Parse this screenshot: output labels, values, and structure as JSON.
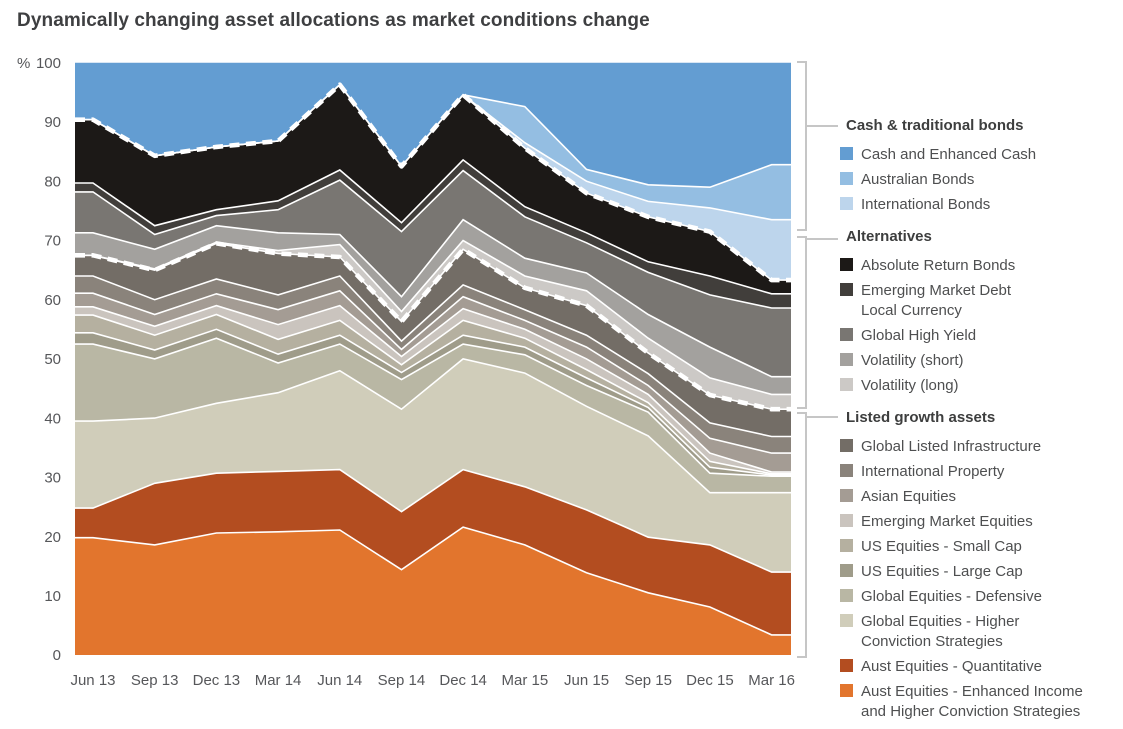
{
  "title": "Dynamically changing asset allocations as market conditions change",
  "y_axis": {
    "unit": "%",
    "ticks": [
      100,
      90,
      80,
      70,
      60,
      50,
      40,
      30,
      20,
      10,
      0
    ]
  },
  "x_axis": {
    "ticks": [
      "Jun 13",
      "Sep 13",
      "Dec 13",
      "Mar 14",
      "Jun 14",
      "Sep 14",
      "Dec 14",
      "Mar 15",
      "Jun 15",
      "Sep 15",
      "Dec 15",
      "Mar 16"
    ]
  },
  "chart_data": {
    "type": "area",
    "stacked": true,
    "ylim": [
      0,
      100
    ],
    "x": [
      "Jun 13",
      "Sep 13",
      "Dec 13",
      "Mar 14",
      "Jun 14",
      "Sep 14",
      "Dec 14",
      "Mar 15",
      "Jun 15",
      "Sep 15",
      "Dec 15",
      "Mar 16"
    ],
    "series": [
      {
        "name": "Aust Equities - Enhanced Income and Higher Conviction Strategies",
        "color": "#e2752d",
        "values": [
          19.8,
          18.6,
          20.6,
          20.8,
          21.1,
          14.4,
          21.6,
          18.6,
          13.9,
          10.5,
          8.1,
          3.4
        ]
      },
      {
        "name": "Aust Equities - Quantitative",
        "color": "#b34d20",
        "values": [
          5.0,
          10.4,
          10.1,
          10.2,
          10.2,
          9.8,
          9.7,
          9.8,
          10.6,
          9.4,
          10.5,
          10.6
        ]
      },
      {
        "name": "Global Equities - Higher Conviction Strategies",
        "color": "#d0cdba",
        "values": [
          14.7,
          11.0,
          11.8,
          13.3,
          16.7,
          17.3,
          18.7,
          19.2,
          17.5,
          17.1,
          8.8,
          13.4
        ]
      },
      {
        "name": "Global Equities - Defensive",
        "color": "#b9b7a4",
        "values": [
          13.0,
          10.0,
          11.0,
          5.0,
          4.5,
          5.0,
          2.5,
          3.1,
          3.5,
          4.0,
          3.3,
          2.8
        ]
      },
      {
        "name": "US Equities - Large Cap",
        "color": "#9f9c8a",
        "values": [
          1.9,
          1.5,
          1.5,
          1.5,
          1.5,
          1.2,
          1.5,
          1.3,
          1.3,
          0.8,
          1.0,
          0.2
        ]
      },
      {
        "name": "US Equities - Small Cap",
        "color": "#b5b0a0",
        "values": [
          3.0,
          2.5,
          2.5,
          2.5,
          2.5,
          1.3,
          2.5,
          1.5,
          1.4,
          0.8,
          1.0,
          0.2
        ]
      },
      {
        "name": "Emerging Market Equities",
        "color": "#cac4be",
        "values": [
          1.4,
          1.5,
          1.5,
          2.5,
          2.5,
          1.4,
          2.0,
          1.5,
          1.8,
          1.4,
          1.4,
          0.3
        ]
      },
      {
        "name": "Asian Equities",
        "color": "#a49c94",
        "values": [
          2.3,
          2.0,
          2.0,
          2.5,
          2.5,
          1.2,
          2.0,
          1.5,
          2.0,
          1.5,
          2.5,
          3.2
        ]
      },
      {
        "name": "International Property",
        "color": "#8a837b",
        "values": [
          2.9,
          2.5,
          2.5,
          2.5,
          2.5,
          1.4,
          2.0,
          1.8,
          2.0,
          2.0,
          2.6,
          2.8
        ]
      },
      {
        "name": "Global Listed Infrastructure",
        "color": "#736d66",
        "values": [
          3.5,
          5.0,
          6.0,
          7.0,
          3.2,
          3.3,
          6.0,
          3.7,
          5.0,
          3.5,
          4.7,
          4.6
        ]
      },
      {
        "name": "Volatility (long)",
        "color": "#ccc9c6",
        "values": [
          0.0,
          0.2,
          0.2,
          0.5,
          2.1,
          1.7,
          1.5,
          2.0,
          2.5,
          2.5,
          2.9,
          2.5
        ]
      },
      {
        "name": "Volatility (short)",
        "color": "#a3a19e",
        "values": [
          3.8,
          3.3,
          2.8,
          3.0,
          1.7,
          2.5,
          3.5,
          3.0,
          3.0,
          4.0,
          5.2,
          3.0
        ]
      },
      {
        "name": "Global High Yield",
        "color": "#797672",
        "values": [
          6.9,
          2.5,
          1.7,
          3.9,
          9.2,
          11.0,
          8.3,
          7.0,
          5.1,
          7.1,
          8.8,
          11.6
        ]
      },
      {
        "name": "Emerging Market Debt Local Currency",
        "color": "#413e3b",
        "values": [
          1.5,
          1.5,
          1.0,
          1.5,
          1.7,
          1.5,
          1.8,
          1.7,
          1.7,
          1.8,
          3.2,
          2.4
        ]
      },
      {
        "name": "Absolute Return Bonds",
        "color": "#1c1917",
        "values": [
          10.7,
          11.8,
          10.6,
          10.1,
          14.4,
          9.5,
          11.0,
          9.9,
          6.7,
          7.6,
          7.5,
          2.3
        ]
      },
      {
        "name": "International Bonds",
        "color": "#bdd5ec",
        "values": [
          0,
          0,
          0,
          0,
          0,
          0,
          0,
          0.9,
          2.0,
          2.6,
          4.0,
          10.2
        ]
      },
      {
        "name": "Australian Bonds",
        "color": "#94bee2",
        "values": [
          0,
          0,
          0,
          0,
          0,
          0,
          0,
          6.1,
          2.0,
          2.8,
          3.5,
          9.3
        ]
      },
      {
        "name": "Cash and Enhanced Cash",
        "color": "#639dd2",
        "values": [
          9.6,
          15.7,
          14.2,
          13.2,
          3.7,
          17.5,
          5.4,
          7.4,
          18.0,
          20.6,
          21.0,
          17.2
        ]
      }
    ],
    "overlays": [
      {
        "name": "alternatives-top-boundary",
        "style": "white-dashed",
        "after_series": "Absolute Return Bonds"
      },
      {
        "name": "growth-assets-top-boundary",
        "style": "white-dashed",
        "after_series": "Global Listed Infrastructure"
      }
    ],
    "legend_position": "right"
  },
  "legend": {
    "groups": [
      {
        "label": "Cash & traditional bonds",
        "items": [
          {
            "label": "Cash and Enhanced Cash",
            "color": "#639dd2"
          },
          {
            "label": "Australian Bonds",
            "color": "#94bee2"
          },
          {
            "label": "International Bonds",
            "color": "#bdd5ec"
          }
        ]
      },
      {
        "label": "Alternatives",
        "items": [
          {
            "label": "Absolute Return Bonds",
            "color": "#1c1917"
          },
          {
            "label": "Emerging Market Debt\nLocal Currency",
            "color": "#413e3b"
          },
          {
            "label": "Global High Yield",
            "color": "#797672"
          },
          {
            "label": "Volatility (short)",
            "color": "#a3a19e"
          },
          {
            "label": "Volatility (long)",
            "color": "#ccc9c6"
          }
        ]
      },
      {
        "label": "Listed growth assets",
        "items": [
          {
            "label": "Global Listed Infrastructure",
            "color": "#736d66"
          },
          {
            "label": "International Property",
            "color": "#8a837b"
          },
          {
            "label": "Asian Equities",
            "color": "#a49c94"
          },
          {
            "label": "Emerging Market Equities",
            "color": "#cac4be"
          },
          {
            "label": "US Equities - Small Cap",
            "color": "#b5b0a0"
          },
          {
            "label": "US Equities - Large Cap",
            "color": "#9f9c8a"
          },
          {
            "label": "Global Equities - Defensive",
            "color": "#b9b7a4"
          },
          {
            "label": "Global Equities - Higher\nConviction Strategies",
            "color": "#d0cdba"
          },
          {
            "label": "Aust Equities - Quantitative",
            "color": "#b34d20"
          },
          {
            "label": "Aust Equities - Enhanced Income\nand Higher Conviction Strategies",
            "color": "#e2752d"
          }
        ]
      }
    ]
  }
}
